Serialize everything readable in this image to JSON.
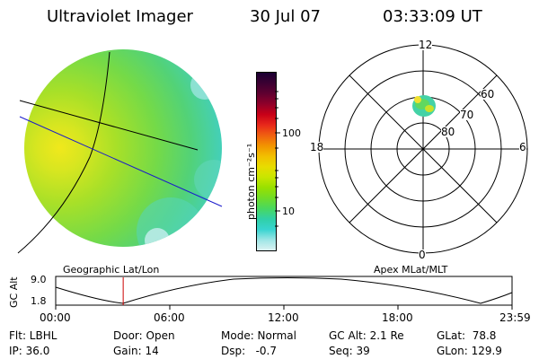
{
  "header": {
    "title": "Ultraviolet Imager",
    "date": "30 Jul 07",
    "time": "03:33:09 UT"
  },
  "colorbar": {
    "unit_label": "photon cm⁻²s⁻¹",
    "ticks": [
      "100",
      "10"
    ],
    "colors_top_to_bottom": [
      "#1a0033",
      "#3c0032",
      "#600030",
      "#90002a",
      "#c80018",
      "#e8281a",
      "#f06010",
      "#f29400",
      "#f2c000",
      "#e8dc00",
      "#c8e600",
      "#98e000",
      "#70dc28",
      "#48d860",
      "#30d0a8",
      "#38d4d0",
      "#9ee6e6",
      "#dcf2f2"
    ]
  },
  "polar": {
    "mlt_labels": [
      "12",
      "18",
      "6",
      "0"
    ],
    "mlat_labels": [
      "60",
      "70",
      "80"
    ]
  },
  "track": {
    "left_title": "Geographic Lat/Lon",
    "right_title": "Apex MLat/MLT",
    "ylabel": "GC Alt",
    "ytick_top": "9.0",
    "ytick_bottom": "1.8",
    "xticks": [
      "00:00",
      "06:00",
      "12:00",
      "18:00",
      "23:59"
    ],
    "marker_time_hours": 3.55
  },
  "params": {
    "flt": "Flt: LBHL",
    "ip": "IP: 36.0",
    "door": "Door: Open",
    "gain": "Gain: 14",
    "mode": "Mode: Normal",
    "dsp": "Dsp:   -0.7",
    "gcalt": "GC Alt: 2.1 Re",
    "seq": "Seq: 39",
    "glat": "GLat:  78.8",
    "glon": "GLon: 129.9"
  }
}
